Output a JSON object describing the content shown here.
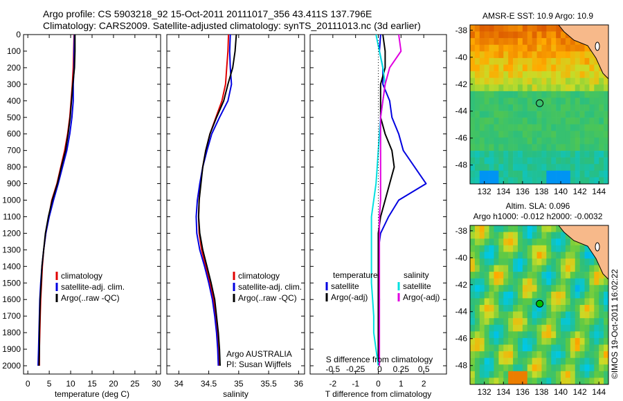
{
  "header": {
    "line1": "Argo profile: CS 5903218_92 15-Oct-2011 20111017_356 43.411S 137.796E",
    "line2": "Climatology: CARS2009. Satellite-adjusted climatology: synTS_20111013.nc (3d earlier)"
  },
  "colors": {
    "climatology": "#e00000",
    "satellite": "#0000e0",
    "argo": "#000000",
    "sal_satellite": "#00e0e0",
    "sal_argo": "#e000e0",
    "land": "#f7b98a",
    "marker": "#00c000"
  },
  "chart_data": [
    {
      "type": "line",
      "id": "temperature",
      "xlabel": "temperature (deg C)",
      "ylabel": "",
      "xlim": [
        -1,
        31
      ],
      "ylim": [
        2050,
        0
      ],
      "xticks": [
        0,
        5,
        10,
        15,
        20,
        25,
        30
      ],
      "yticks": [
        0,
        100,
        200,
        300,
        400,
        500,
        600,
        700,
        800,
        900,
        1000,
        1100,
        1200,
        1300,
        1400,
        1500,
        1600,
        1700,
        1800,
        1900,
        2000
      ],
      "legend": [
        "climatology",
        "satellite-adj. clim.",
        "Argo(..raw -QC)"
      ],
      "legend_placement": "bottom-center",
      "series": [
        {
          "name": "climatology",
          "color": "#e00000",
          "x": [
            10.8,
            10.7,
            10.6,
            10.4,
            10.1,
            9.8,
            9.3,
            8.6,
            7.7,
            6.8,
            5.6,
            4.9,
            4.2,
            3.7,
            3.4,
            3.2,
            3.0,
            2.9,
            2.8,
            2.7,
            2.7
          ],
          "y": [
            0,
            100,
            200,
            300,
            400,
            500,
            600,
            700,
            800,
            900,
            1000,
            1100,
            1200,
            1300,
            1400,
            1500,
            1600,
            1700,
            1800,
            1900,
            2000
          ]
        },
        {
          "name": "satellite-adj. clim.",
          "color": "#0000e0",
          "x": [
            10.9,
            10.8,
            10.8,
            10.6,
            10.6,
            10.3,
            9.8,
            9.1,
            8.1,
            7.1,
            6.0,
            5.0,
            4.2,
            3.7,
            3.3,
            3.0,
            2.8,
            2.7,
            2.6,
            2.5,
            2.4
          ],
          "y": [
            0,
            100,
            200,
            300,
            400,
            500,
            600,
            700,
            800,
            900,
            1000,
            1100,
            1200,
            1300,
            1400,
            1500,
            1600,
            1700,
            1800,
            1900,
            2000
          ]
        },
        {
          "name": "Argo(..raw -QC)",
          "color": "#000000",
          "x": [
            11.0,
            11.0,
            10.9,
            10.5,
            10.2,
            9.9,
            9.4,
            8.8,
            7.8,
            6.9,
            5.7,
            4.8,
            4.1,
            3.7,
            3.3,
            3.1,
            2.9,
            2.8,
            2.7,
            2.7,
            2.6
          ],
          "y": [
            0,
            100,
            200,
            300,
            400,
            500,
            600,
            700,
            800,
            900,
            1000,
            1100,
            1200,
            1300,
            1400,
            1500,
            1600,
            1700,
            1800,
            1900,
            2000
          ]
        }
      ]
    },
    {
      "type": "line",
      "id": "salinity",
      "xlabel": "salinity",
      "ylabel": "",
      "xlim": [
        33.8,
        36.1
      ],
      "ylim": [
        2050,
        0
      ],
      "xticks": [
        34,
        34.5,
        35,
        35.5,
        36
      ],
      "legend": [
        "climatology",
        "satellite-adj. clim.",
        "Argo(..raw -QC)"
      ],
      "legend_placement": "bottom-right",
      "annotation": [
        "Argo AUSTRALIA",
        "PI: Susan Wijffels"
      ],
      "series": [
        {
          "name": "climatology",
          "color": "#e00000",
          "x": [
            34.83,
            34.82,
            34.8,
            34.78,
            34.72,
            34.62,
            34.52,
            34.45,
            34.4,
            34.36,
            34.34,
            34.33,
            34.34,
            34.38,
            34.45,
            34.52,
            34.58,
            34.62,
            34.65,
            34.67,
            34.68
          ],
          "y": [
            0,
            100,
            200,
            300,
            400,
            500,
            600,
            700,
            800,
            900,
            1000,
            1100,
            1200,
            1300,
            1400,
            1500,
            1600,
            1700,
            1800,
            1900,
            2000
          ]
        },
        {
          "name": "satellite-adj. clim.",
          "color": "#0000e0",
          "x": [
            34.86,
            34.85,
            34.86,
            34.88,
            34.82,
            34.68,
            34.55,
            34.47,
            34.4,
            34.35,
            34.31,
            34.29,
            34.3,
            34.35,
            34.43,
            34.5,
            34.56,
            34.6,
            34.63,
            34.65,
            34.66
          ],
          "y": [
            0,
            100,
            200,
            300,
            400,
            500,
            600,
            700,
            800,
            900,
            1000,
            1100,
            1200,
            1300,
            1400,
            1500,
            1600,
            1700,
            1800,
            1900,
            2000
          ]
        },
        {
          "name": "Argo(..raw -QC)",
          "color": "#000000",
          "x": [
            34.96,
            34.94,
            34.9,
            34.82,
            34.75,
            34.63,
            34.52,
            34.45,
            34.4,
            34.37,
            34.34,
            34.33,
            34.35,
            34.4,
            34.47,
            34.54,
            34.6,
            34.63,
            34.66,
            34.68,
            34.69
          ],
          "y": [
            0,
            100,
            200,
            300,
            400,
            500,
            600,
            700,
            800,
            900,
            1000,
            1100,
            1200,
            1300,
            1400,
            1500,
            1600,
            1700,
            1800,
            1900,
            2000
          ]
        }
      ]
    },
    {
      "type": "line",
      "id": "difference",
      "xlabel": "T difference from climatology",
      "top_axis_label": "S difference from climatology",
      "xlim": [
        -3,
        3
      ],
      "ylim": [
        2050,
        0
      ],
      "xticks": [
        -2,
        -1,
        0,
        1,
        2
      ],
      "top_xticks": [
        "-0.5",
        "-0.25",
        "0",
        "0.25",
        "0.5"
      ],
      "legend_group1_title": "temperature",
      "legend_group2_title": "salinity",
      "legend": [
        "satellite",
        "Argo(-adj)",
        "satellite",
        "Argo(-adj)"
      ],
      "legend_placement": "bottom-center",
      "series": [
        {
          "name": "temperature satellite",
          "color": "#0000e0",
          "x": [
            0.1,
            0.05,
            0.2,
            0.2,
            0.5,
            0.6,
            0.9,
            1.1,
            1.6,
            2.1,
            0.9,
            0.45,
            0.1,
            0,
            0,
            0,
            0.05,
            0,
            0,
            0,
            0
          ],
          "y": [
            0,
            100,
            200,
            300,
            400,
            500,
            600,
            700,
            800,
            900,
            1000,
            1100,
            1200,
            1300,
            1400,
            1500,
            1600,
            1700,
            1800,
            1900,
            2000
          ]
        },
        {
          "name": "temperature Argo(-adj)",
          "color": "#000000",
          "x": [
            0.2,
            0.3,
            0.3,
            0.1,
            0.1,
            0.1,
            0.3,
            0.6,
            0.7,
            0.5,
            0.3,
            0.1,
            0,
            0,
            0,
            0,
            0,
            0,
            0,
            0,
            0
          ],
          "y": [
            0,
            100,
            200,
            300,
            400,
            500,
            600,
            700,
            800,
            900,
            1000,
            1100,
            1200,
            1300,
            1400,
            1500,
            1600,
            1700,
            1800,
            1900,
            2000
          ]
        },
        {
          "name": "salinity satellite",
          "color": "#00e0e0",
          "x": [
            -0.1,
            0.05,
            0.2,
            0.3,
            0.2,
            0.1,
            0.05,
            0,
            -0.05,
            -0.1,
            -0.2,
            -0.3,
            -0.3,
            -0.3,
            -0.3,
            -0.3,
            -0.25,
            -0.2,
            -0.2,
            -0.1,
            0
          ],
          "y": [
            0,
            100,
            200,
            300,
            400,
            500,
            600,
            700,
            800,
            900,
            1000,
            1100,
            1200,
            1300,
            1400,
            1500,
            1600,
            1700,
            1800,
            1900,
            2000
          ]
        },
        {
          "name": "salinity Argo(-adj)",
          "color": "#e000e0",
          "x": [
            0.9,
            1.0,
            0.5,
            0.3,
            0.2,
            0.1,
            0.1,
            0.1,
            0.1,
            0.1,
            0.1,
            0.05,
            0.05,
            0.05,
            0.05,
            0.05,
            0.05,
            0.05,
            0.05,
            0.05,
            0.05
          ],
          "y": [
            0,
            100,
            200,
            300,
            400,
            500,
            600,
            700,
            800,
            900,
            1000,
            1100,
            1200,
            1300,
            1400,
            1500,
            1600,
            1700,
            1800,
            1900,
            2000
          ]
        }
      ]
    },
    {
      "type": "heatmap",
      "id": "sst_map",
      "title": "AMSR-E SST: 10.9 Argo: 10.9",
      "xticks": [
        132,
        134,
        136,
        138,
        140,
        142,
        144
      ],
      "yticks": [
        -38,
        -40,
        -42,
        -44,
        -46,
        -48
      ],
      "xlim": [
        130.5,
        145
      ],
      "ylim": [
        -49.4,
        -37.6
      ],
      "marker": {
        "lon": 137.796,
        "lat": -43.411
      }
    },
    {
      "type": "heatmap",
      "id": "sla_map",
      "title": "Altim. SLA: 0.096",
      "subtitle": "Argo h1000: -0.012 h2000: -0.0032",
      "xticks": [
        132,
        134,
        136,
        138,
        140,
        142,
        144
      ],
      "yticks": [
        -38,
        -40,
        -42,
        -44,
        -46,
        -48
      ],
      "xlim": [
        130.5,
        145
      ],
      "ylim": [
        -49.4,
        -37.6
      ],
      "marker": {
        "lon": 137.796,
        "lat": -43.411
      }
    }
  ],
  "footer": {
    "credit": "©IMOS 19-Oct-2011 16:02:22"
  }
}
